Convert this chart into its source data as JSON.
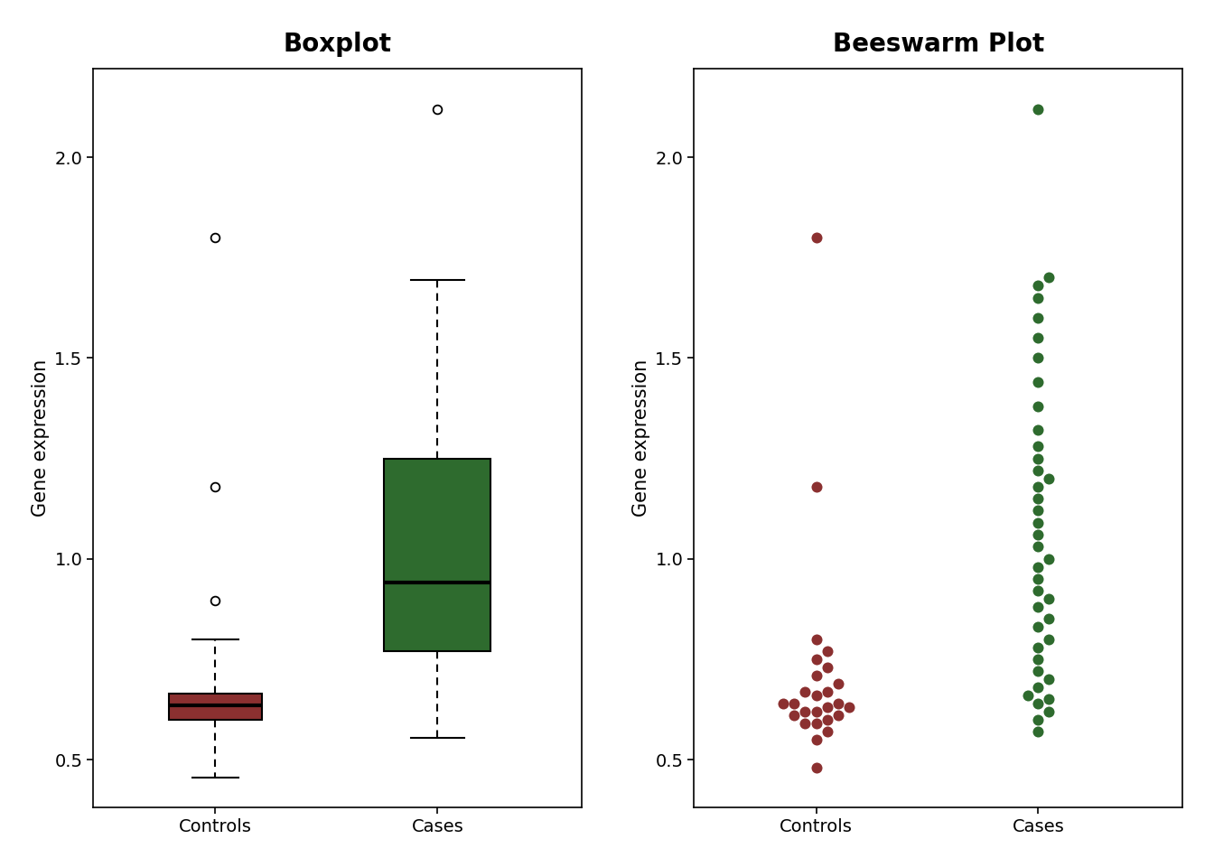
{
  "title_left": "Boxplot",
  "title_right": "Beeswarm Plot",
  "ylabel": "Gene expression",
  "categories": [
    "Controls",
    "Cases"
  ],
  "controls_color": "#8B3030",
  "cases_color": "#2E6B2E",
  "boxplot": {
    "controls": {
      "median": 0.635,
      "q1": 0.6,
      "q3": 0.665,
      "whisker_low": 0.455,
      "whisker_high": 0.8,
      "outliers": [
        0.895,
        1.18,
        1.8
      ]
    },
    "cases": {
      "median": 0.94,
      "q1": 0.77,
      "q3": 1.25,
      "whisker_low": 0.555,
      "whisker_high": 1.695,
      "outliers": [
        2.12
      ]
    }
  },
  "controls_data": [
    0.62,
    0.61,
    0.64,
    0.63,
    0.59,
    0.67,
    0.69,
    0.62,
    0.55,
    0.71,
    0.64,
    0.6,
    0.66,
    0.59,
    0.63,
    0.67,
    0.57,
    0.61,
    0.64,
    0.48,
    0.73,
    0.75,
    0.77,
    0.8,
    1.18,
    1.8
  ],
  "cases_data": [
    0.57,
    0.6,
    0.62,
    0.64,
    0.65,
    0.66,
    0.68,
    0.7,
    0.72,
    0.75,
    0.78,
    0.8,
    0.83,
    0.85,
    0.88,
    0.9,
    0.92,
    0.95,
    0.98,
    1.0,
    1.03,
    1.06,
    1.09,
    1.12,
    1.15,
    1.18,
    1.2,
    1.22,
    1.25,
    1.28,
    1.32,
    1.38,
    1.44,
    1.5,
    1.55,
    1.6,
    1.65,
    1.68,
    1.7,
    2.12
  ],
  "ylim": [
    0.38,
    2.22
  ],
  "yticks": [
    0.5,
    1.0,
    1.5,
    2.0
  ],
  "background_color": "#ffffff",
  "title_fontsize": 20,
  "label_fontsize": 15,
  "tick_fontsize": 14
}
